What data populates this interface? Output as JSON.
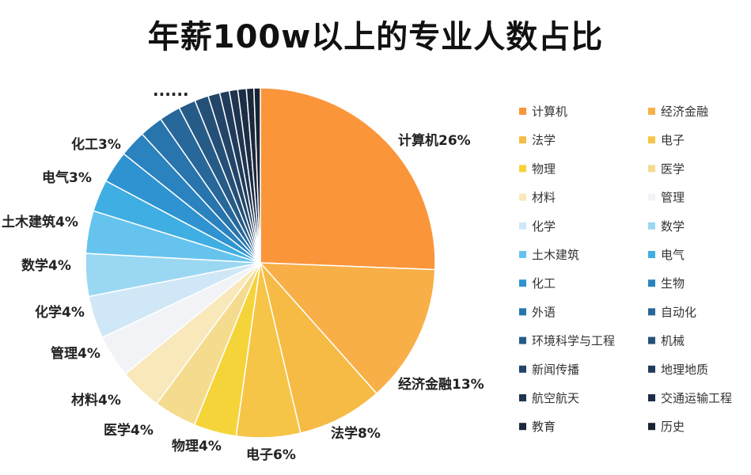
{
  "chart_data": {
    "type": "pie",
    "title": "年薪100w以上的专业人数占比",
    "slices": [
      {
        "name": "计算机",
        "value": 26,
        "label": "计算机26%",
        "color": "#FB953A"
      },
      {
        "name": "经济金融",
        "value": 13,
        "label": "经济金融13%",
        "color": "#F9AF47"
      },
      {
        "name": "法学",
        "value": 8,
        "label": "法学8%",
        "color": "#F6BB45"
      },
      {
        "name": "电子",
        "value": 6,
        "label": "电子6%",
        "color": "#F6C547"
      },
      {
        "name": "物理",
        "value": 4,
        "label": "物理4%",
        "color": "#F5D43A"
      },
      {
        "name": "医学",
        "value": 4,
        "label": "医学4%",
        "color": "#F5DB8D"
      },
      {
        "name": "材料",
        "value": 4,
        "label": "材料4%",
        "color": "#F8E8BA"
      },
      {
        "name": "管理",
        "value": 4,
        "label": "管理4%",
        "color": "#F1F3F6"
      },
      {
        "name": "化学",
        "value": 4,
        "label": "化学4%",
        "color": "#CFE7F6"
      },
      {
        "name": "数学",
        "value": 4,
        "label": "数学4%",
        "color": "#9AD7F3"
      },
      {
        "name": "土木建筑",
        "value": 4,
        "label": "土木建筑4%",
        "color": "#66C3EE"
      },
      {
        "name": "电气",
        "value": 3,
        "label": "电气3%",
        "color": "#3FAEE3"
      },
      {
        "name": "化工",
        "value": 3,
        "label": "化工3%",
        "color": "#2E93D0"
      },
      {
        "name": "生物",
        "value": 2.5,
        "color": "#2A82BF"
      },
      {
        "name": "外语",
        "value": 2.2,
        "color": "#2874AC"
      },
      {
        "name": "自动化",
        "value": 2,
        "color": "#28679A"
      },
      {
        "name": "环境科学与工程",
        "value": 1.6,
        "color": "#265B88"
      },
      {
        "name": "机械",
        "value": 1.3,
        "color": "#245077"
      },
      {
        "name": "新闻传播",
        "value": 1.1,
        "color": "#224568"
      },
      {
        "name": "地理地质",
        "value": 0.9,
        "color": "#203C5A"
      },
      {
        "name": "航空航天",
        "value": 0.8,
        "color": "#1E344F"
      },
      {
        "name": "交通运输工程",
        "value": 0.8,
        "color": "#1C2D45"
      },
      {
        "name": "教育",
        "value": 0.7,
        "color": "#1A283C"
      },
      {
        "name": "历史",
        "value": 0.6,
        "color": "#182434"
      }
    ],
    "more_marker": "......",
    "legend_position": "right"
  }
}
